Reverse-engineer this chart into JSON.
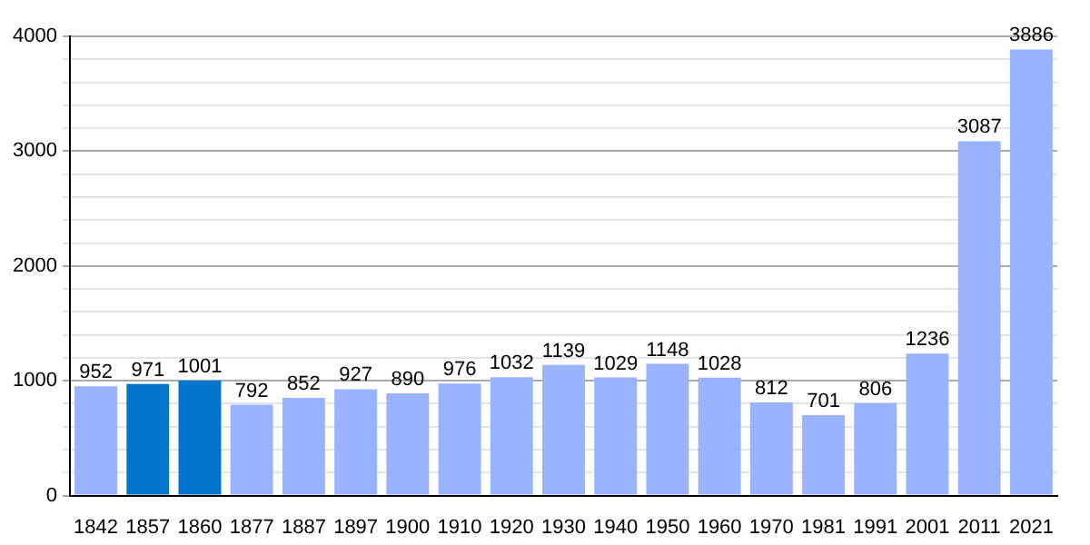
{
  "chart_data": {
    "type": "bar",
    "categories": [
      "1842",
      "1857",
      "1860",
      "1877",
      "1887",
      "1897",
      "1900",
      "1910",
      "1920",
      "1930",
      "1940",
      "1950",
      "1960",
      "1970",
      "1981",
      "1991",
      "2001",
      "2011",
      "2021"
    ],
    "values": [
      952,
      971,
      1001,
      792,
      852,
      927,
      890,
      976,
      1032,
      1139,
      1029,
      1148,
      1028,
      812,
      701,
      806,
      1236,
      3087,
      3886
    ],
    "colors": [
      "#99b3ff",
      "#0077cc",
      "#0077cc",
      "#99b3ff",
      "#99b3ff",
      "#99b3ff",
      "#99b3ff",
      "#99b3ff",
      "#99b3ff",
      "#99b3ff",
      "#99b3ff",
      "#99b3ff",
      "#99b3ff",
      "#99b3ff",
      "#99b3ff",
      "#99b3ff",
      "#99b3ff",
      "#99b3ff",
      "#99b3ff"
    ],
    "ylim": [
      0,
      4000
    ],
    "yticks": [
      0,
      {
        "value": 200,
        "label": null
      },
      {
        "value": 400,
        "label": null
      },
      {
        "value": 600,
        "label": null
      },
      {
        "value": 800,
        "label": null
      },
      1000,
      {
        "value": 1200,
        "label": null
      },
      {
        "value": 1400,
        "label": null
      },
      {
        "value": 1600,
        "label": null
      },
      {
        "value": 1800,
        "label": null
      },
      2000,
      {
        "value": 2200,
        "label": null
      },
      {
        "value": 2400,
        "label": null
      },
      {
        "value": 2600,
        "label": null
      },
      {
        "value": 2800,
        "label": null
      },
      3000,
      {
        "value": 3200,
        "label": null
      },
      {
        "value": 3400,
        "label": null
      },
      {
        "value": 3600,
        "label": null
      },
      {
        "value": 3800,
        "label": null
      },
      4000
    ],
    "grid": "y",
    "data_labels": true,
    "legend": false
  }
}
